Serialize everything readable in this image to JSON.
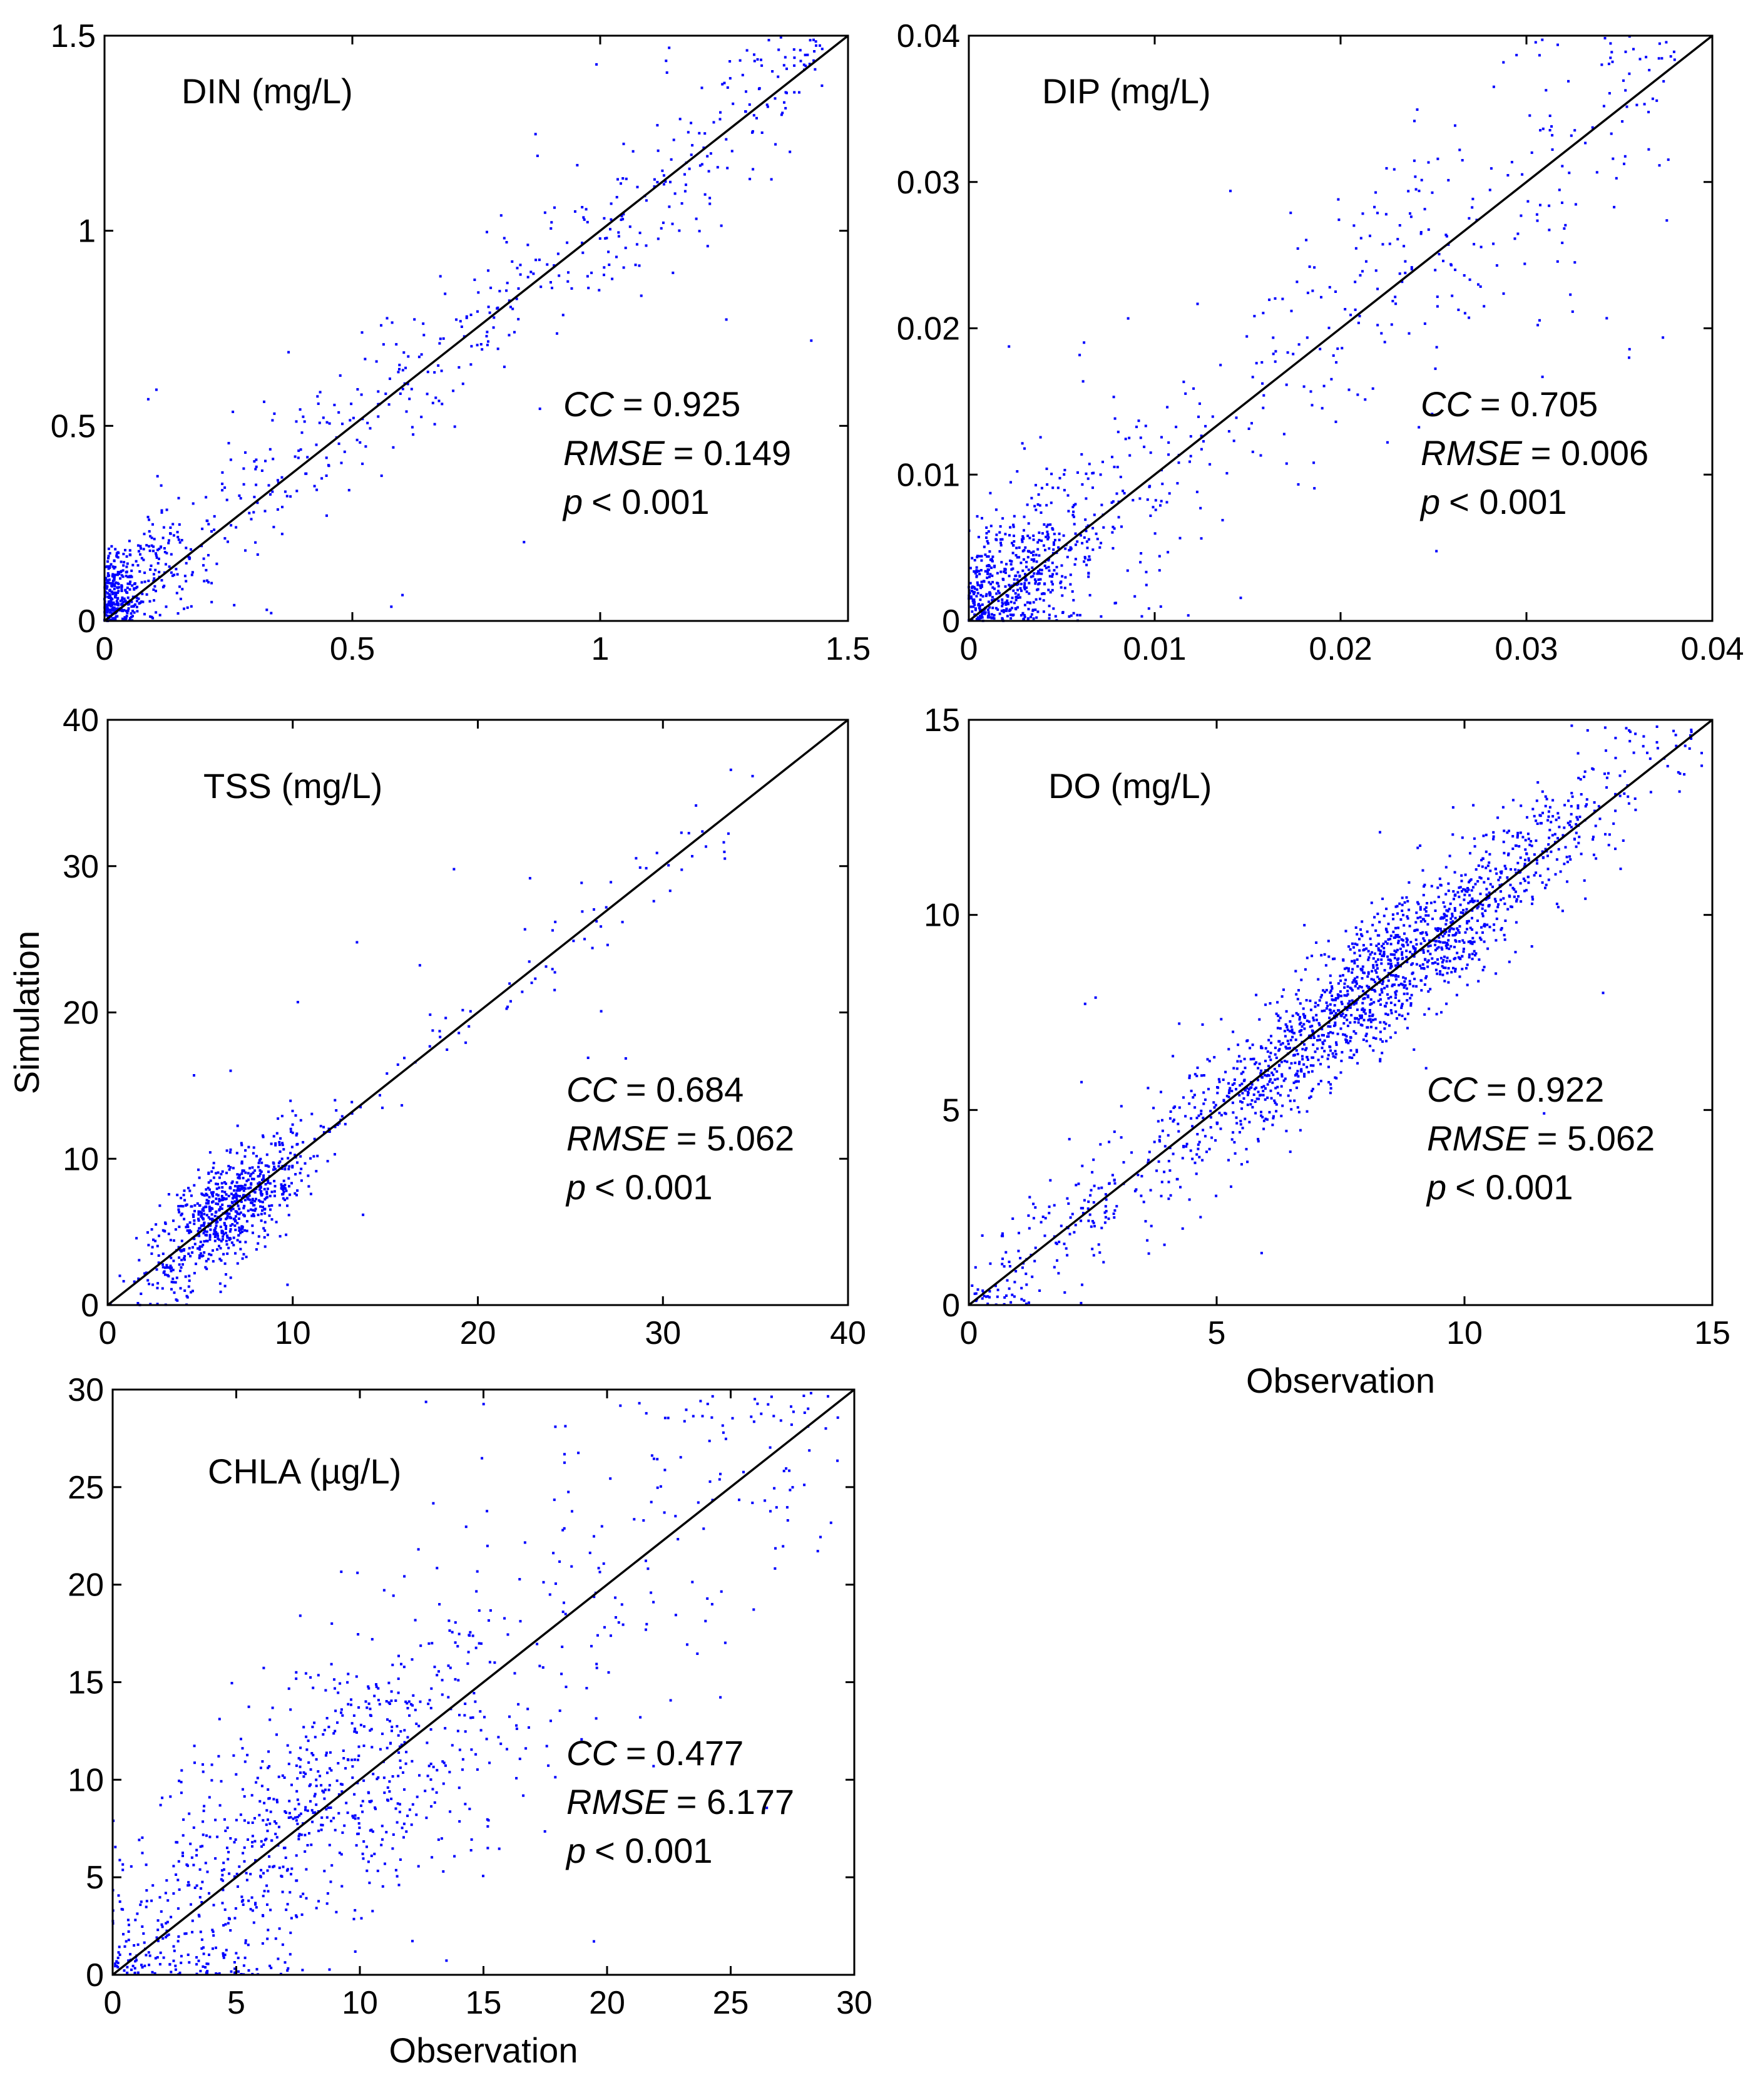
{
  "figure": {
    "x_axis_label": "Observation",
    "y_axis_label": "Simulation"
  },
  "chart_data": [
    {
      "id": "din",
      "type": "scatter",
      "title": "DIN (mg/L)",
      "xlabel": "",
      "ylabel": "",
      "xlim": [
        0,
        1.5
      ],
      "ylim": [
        0,
        1.5
      ],
      "x_ticks": [
        "0",
        "0.5",
        "1",
        "1.5"
      ],
      "y_ticks": [
        "0",
        "0.5",
        "1",
        "1.5"
      ],
      "reference_line": "1:1",
      "stats": {
        "cc_label": "CC",
        "cc_value": "= 0.925",
        "rmse_label": "RMSE",
        "rmse_value": "= 0.149",
        "p_label": "p",
        "p_value": "< 0.001"
      },
      "series": [
        {
          "name": "points",
          "color": "#0000ff"
        }
      ]
    },
    {
      "id": "dip",
      "type": "scatter",
      "title": "DIP (mg/L)",
      "xlabel": "",
      "ylabel": "",
      "xlim": [
        0,
        0.04
      ],
      "ylim": [
        0,
        0.04
      ],
      "x_ticks": [
        "0",
        "0.01",
        "0.02",
        "0.03",
        "0.04"
      ],
      "y_ticks": [
        "0",
        "0.01",
        "0.02",
        "0.03",
        "0.04"
      ],
      "reference_line": "1:1",
      "stats": {
        "cc_label": "CC",
        "cc_value": "= 0.705",
        "rmse_label": "RMSE",
        "rmse_value": "= 0.006",
        "p_label": "p",
        "p_value": "< 0.001"
      },
      "series": [
        {
          "name": "points",
          "color": "#0000ff"
        }
      ]
    },
    {
      "id": "tss",
      "type": "scatter",
      "title": "TSS (mg/L)",
      "xlabel": "",
      "ylabel": "Simulation",
      "xlim": [
        0,
        40
      ],
      "ylim": [
        0,
        40
      ],
      "x_ticks": [
        "0",
        "10",
        "20",
        "30",
        "40"
      ],
      "y_ticks": [
        "0",
        "10",
        "20",
        "30",
        "40"
      ],
      "reference_line": "1:1",
      "stats": {
        "cc_label": "CC",
        "cc_value": "= 0.684",
        "rmse_label": "RMSE",
        "rmse_value": "= 5.062",
        "p_label": "p",
        "p_value": "< 0.001"
      },
      "series": [
        {
          "name": "points",
          "color": "#0000ff"
        }
      ]
    },
    {
      "id": "do",
      "type": "scatter",
      "title": "DO (mg/L)",
      "xlabel": "Observation",
      "ylabel": "",
      "xlim": [
        0,
        15
      ],
      "ylim": [
        0,
        15
      ],
      "x_ticks": [
        "0",
        "5",
        "10",
        "15"
      ],
      "y_ticks": [
        "0",
        "5",
        "10",
        "15"
      ],
      "reference_line": "1:1",
      "stats": {
        "cc_label": "CC",
        "cc_value": "= 0.922",
        "rmse_label": "RMSE",
        "rmse_value": "= 5.062",
        "p_label": "p",
        "p_value": "< 0.001"
      },
      "series": [
        {
          "name": "points",
          "color": "#0000ff"
        }
      ]
    },
    {
      "id": "chla",
      "type": "scatter",
      "title": "CHLA (µg/L)",
      "xlabel": "Observation",
      "ylabel": "",
      "xlim": [
        0,
        30
      ],
      "ylim": [
        0,
        30
      ],
      "x_ticks": [
        "0",
        "5",
        "10",
        "15",
        "20",
        "25",
        "30"
      ],
      "y_ticks": [
        "0",
        "5",
        "10",
        "15",
        "20",
        "25",
        "30"
      ],
      "reference_line": "1:1",
      "stats": {
        "cc_label": "CC",
        "cc_value": "= 0.477",
        "rmse_label": "RMSE",
        "rmse_value": "= 6.177",
        "p_label": "p",
        "p_value": "< 0.001"
      },
      "series": [
        {
          "name": "points",
          "color": "#0000ff"
        }
      ]
    }
  ]
}
